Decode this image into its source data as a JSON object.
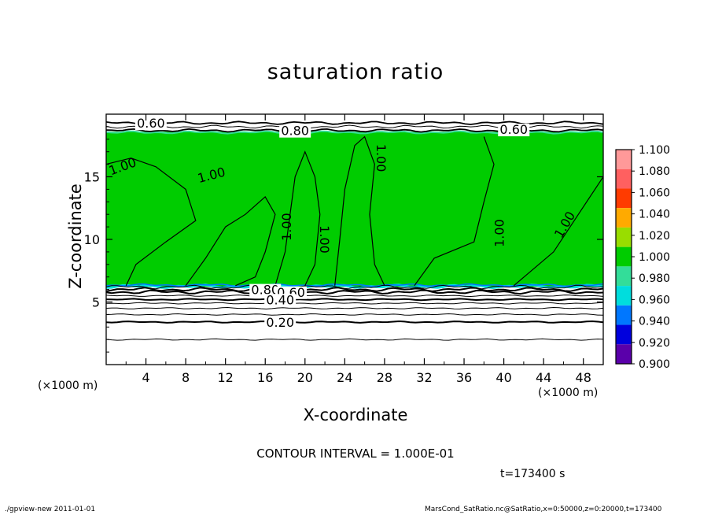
{
  "chart_data": {
    "type": "heatmap",
    "title": "saturation ratio",
    "xlabel": "X-coordinate",
    "ylabel": "Z-coordinate",
    "x_unit_left": "(×1000 m)",
    "x_unit_right": "(×1000 m)",
    "xlim": [
      0,
      50
    ],
    "ylim": [
      0,
      20
    ],
    "x_ticks": [
      4,
      8,
      12,
      16,
      20,
      24,
      28,
      32,
      36,
      40,
      44,
      48
    ],
    "y_ticks": [
      5,
      10,
      15
    ],
    "colorbar": {
      "levels": [
        1.1,
        1.08,
        1.06,
        1.04,
        1.02,
        1.0,
        0.98,
        0.96,
        0.94,
        0.92,
        0.9
      ],
      "labels": [
        "1.100",
        "1.080",
        "1.060",
        "1.040",
        "1.020",
        "1.000",
        "0.980",
        "0.960",
        "0.940",
        "0.920",
        "0.900"
      ],
      "colors": [
        "#ff9999",
        "#ff6060",
        "#ff3b00",
        "#ffaa00",
        "#99dd00",
        "#00cc00",
        "#33dd99",
        "#00dddd",
        "#0077ff",
        "#0000dd",
        "#5a00aa"
      ]
    },
    "fill_region": {
      "z_bottom": 6.2,
      "z_top": 18.6,
      "value": 1.0,
      "color": "#00cc00"
    },
    "contours_lower": [
      {
        "z": 6.2,
        "label": ""
      },
      {
        "z": 6.0,
        "label": "0.80"
      },
      {
        "z": 5.8,
        "label": "0.60"
      },
      {
        "z": 5.5,
        "label": ""
      },
      {
        "z": 5.2,
        "label": "0.40"
      },
      {
        "z": 4.9,
        "label": ""
      },
      {
        "z": 4.5,
        "label": ""
      },
      {
        "z": 4.0,
        "label": ""
      },
      {
        "z": 3.4,
        "label": "0.20"
      },
      {
        "z": 2.0,
        "label": ""
      }
    ],
    "contours_upper": [
      {
        "z": 18.7,
        "label": "0.80"
      },
      {
        "z": 19.0,
        "label": ""
      },
      {
        "z": 19.3,
        "label": "0.60"
      }
    ],
    "contour_labels_upper_extra": [
      "0.60"
    ],
    "interior_labels": [
      {
        "x": 1.8,
        "z": 15.5,
        "text": "1.00",
        "angle": -20
      },
      {
        "x": 10.7,
        "z": 14.8,
        "text": "1.00",
        "angle": -15
      },
      {
        "x": 18.6,
        "z": 11.0,
        "text": "1.00",
        "angle": -90
      },
      {
        "x": 21.5,
        "z": 10.0,
        "text": "1.00",
        "angle": 90
      },
      {
        "x": 27.2,
        "z": 16.5,
        "text": "1.00",
        "angle": 90
      },
      {
        "x": 40.0,
        "z": 10.5,
        "text": "1.00",
        "angle": -90
      },
      {
        "x": 46.5,
        "z": 11.0,
        "text": "1.00",
        "angle": -60
      }
    ],
    "contour_interval": "CONTOUR INTERVAL = 1.000E-01",
    "time": "t=173400  s"
  },
  "footer": {
    "left": "./gpview-new   2011-01-01",
    "right": "MarsCond_SatRatio.nc@SatRatio,x=0:50000,z=0:20000,t=173400"
  }
}
